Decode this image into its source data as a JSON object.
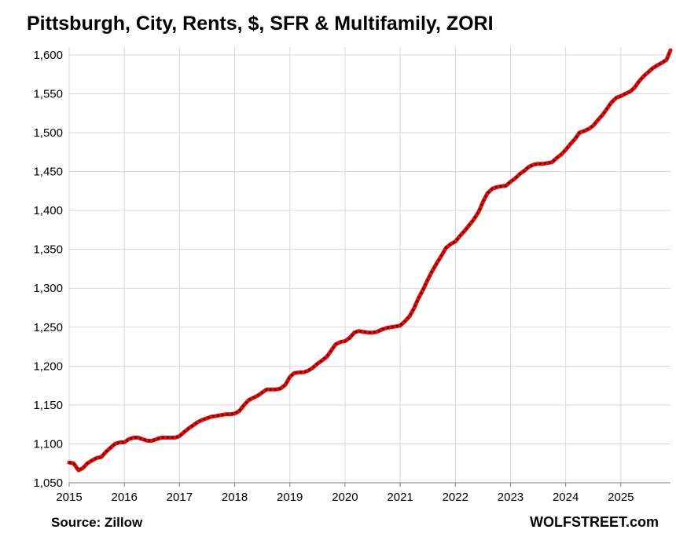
{
  "title": "Pittsburgh, City, Rents, $, SFR & Multifamily, ZORI",
  "source": "Source: Zillow",
  "brand": "WOLFSTREET.com",
  "colors": {
    "line": "#ff0000",
    "dots": "#1a1a1a",
    "grid": "#d9d9d9",
    "axis": "#7f7f7f"
  },
  "chart_data": {
    "type": "line",
    "title": "Pittsburgh, City, Rents, $, SFR & Multifamily, ZORI",
    "xlabel": "",
    "ylabel": "",
    "ylim": [
      1050,
      1610
    ],
    "xlim": [
      2015.0,
      2025.9
    ],
    "yticks": [
      1050,
      1100,
      1150,
      1200,
      1250,
      1300,
      1350,
      1400,
      1450,
      1500,
      1550,
      1600
    ],
    "ytick_labels": [
      "1,050",
      "1,100",
      "1,150",
      "1,200",
      "1,250",
      "1,300",
      "1,350",
      "1,400",
      "1,450",
      "1,500",
      "1,550",
      "1,600"
    ],
    "xticks": [
      2015,
      2016,
      2017,
      2018,
      2019,
      2020,
      2021,
      2022,
      2023,
      2024,
      2025
    ],
    "xtick_labels": [
      "2015",
      "2016",
      "2017",
      "2018",
      "2019",
      "2020",
      "2021",
      "2022",
      "2023",
      "2024",
      "2025"
    ],
    "grid": true,
    "legend": "none",
    "series": [
      {
        "x": [
          2015.0,
          2015.08,
          2015.17,
          2015.25,
          2015.33,
          2015.42,
          2015.5,
          2015.58,
          2015.67,
          2015.75,
          2015.83,
          2015.92,
          2016.0,
          2016.08,
          2016.17,
          2016.25,
          2016.33,
          2016.42,
          2016.5,
          2016.58,
          2016.67,
          2016.75,
          2016.83,
          2016.92,
          2017.0,
          2017.08,
          2017.17,
          2017.25,
          2017.33,
          2017.42,
          2017.5,
          2017.58,
          2017.67,
          2017.75,
          2017.83,
          2017.92,
          2018.0,
          2018.08,
          2018.17,
          2018.25,
          2018.33,
          2018.42,
          2018.5,
          2018.58,
          2018.67,
          2018.75,
          2018.83,
          2018.92,
          2019.0,
          2019.08,
          2019.17,
          2019.25,
          2019.33,
          2019.42,
          2019.5,
          2019.58,
          2019.67,
          2019.75,
          2019.83,
          2019.92,
          2020.0,
          2020.08,
          2020.17,
          2020.25,
          2020.33,
          2020.42,
          2020.5,
          2020.58,
          2020.67,
          2020.75,
          2020.83,
          2020.92,
          2021.0,
          2021.08,
          2021.17,
          2021.25,
          2021.33,
          2021.42,
          2021.5,
          2021.58,
          2021.67,
          2021.75,
          2021.83,
          2021.92,
          2022.0,
          2022.08,
          2022.17,
          2022.25,
          2022.33,
          2022.42,
          2022.5,
          2022.58,
          2022.67,
          2022.75,
          2022.83,
          2022.92,
          2023.0,
          2023.08,
          2023.17,
          2023.25,
          2023.33,
          2023.42,
          2023.5,
          2023.58,
          2023.67,
          2023.75,
          2023.83,
          2023.92,
          2024.0,
          2024.08,
          2024.17,
          2024.25,
          2024.33,
          2024.42,
          2024.5,
          2024.58,
          2024.67,
          2024.75,
          2024.83,
          2024.92,
          2025.0,
          2025.08,
          2025.17,
          2025.25,
          2025.33,
          2025.42,
          2025.5,
          2025.58,
          2025.67,
          2025.75,
          2025.83,
          2025.9
        ],
        "values": [
          1076,
          1075,
          1066,
          1069,
          1075,
          1079,
          1082,
          1083,
          1090,
          1095,
          1100,
          1102,
          1102,
          1106,
          1108,
          1108,
          1106,
          1104,
          1104,
          1106,
          1108,
          1108,
          1108,
          1108,
          1110,
          1115,
          1120,
          1124,
          1128,
          1131,
          1133,
          1135,
          1136,
          1137,
          1138,
          1138,
          1139,
          1142,
          1150,
          1156,
          1159,
          1162,
          1166,
          1170,
          1170,
          1170,
          1171,
          1176,
          1186,
          1191,
          1192,
          1192,
          1194,
          1198,
          1203,
          1207,
          1212,
          1220,
          1228,
          1231,
          1232,
          1236,
          1243,
          1245,
          1244,
          1243,
          1243,
          1244,
          1247,
          1249,
          1250,
          1251,
          1252,
          1257,
          1264,
          1274,
          1287,
          1299,
          1311,
          1322,
          1333,
          1342,
          1352,
          1357,
          1360,
          1367,
          1374,
          1381,
          1388,
          1398,
          1411,
          1422,
          1428,
          1430,
          1431,
          1432,
          1437,
          1441,
          1447,
          1451,
          1456,
          1459,
          1460,
          1460,
          1461,
          1462,
          1467,
          1472,
          1478,
          1485,
          1492,
          1500,
          1502,
          1505,
          1509,
          1516,
          1523,
          1531,
          1539,
          1545,
          1547,
          1550,
          1553,
          1558,
          1566,
          1573,
          1578,
          1583,
          1587,
          1590,
          1594,
          1606
        ]
      }
    ]
  }
}
